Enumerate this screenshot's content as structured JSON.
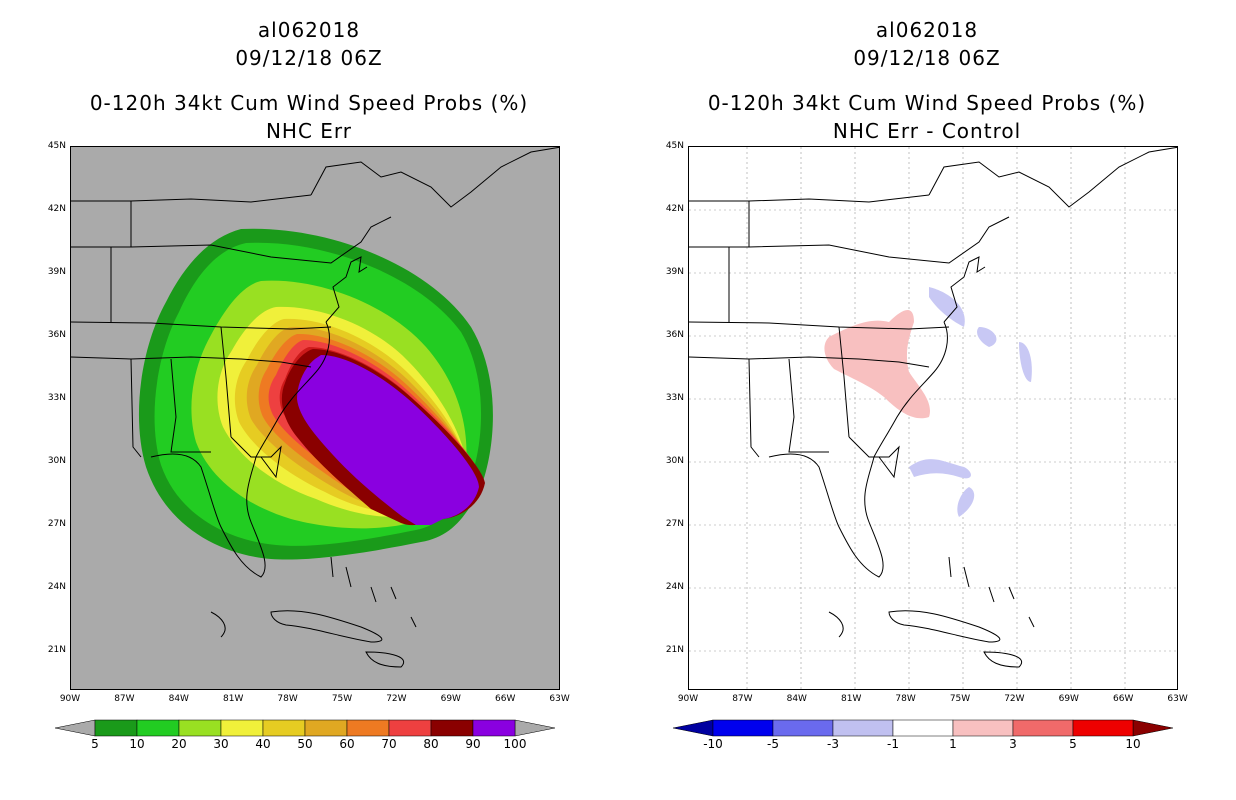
{
  "panels": [
    {
      "storm_id": "al062018",
      "datetime": "09/12/18 06Z",
      "title": "0-120h 34kt Cum Wind Speed Probs (%)",
      "subtitle": "NHC Err",
      "colorbar": {
        "labels": [
          "5",
          "10",
          "20",
          "30",
          "40",
          "50",
          "60",
          "70",
          "80",
          "90",
          "100"
        ],
        "colors": [
          "#1a9a1a",
          "#22cc22",
          "#99e022",
          "#f0f03a",
          "#e6cc22",
          "#e0a822",
          "#ee7a22",
          "#ee4040",
          "#8a0000",
          "#8a00e0"
        ]
      }
    },
    {
      "storm_id": "al062018",
      "datetime": "09/12/18 06Z",
      "title": "0-120h 34kt Cum Wind Speed Probs (%)",
      "subtitle": "NHC Err - Control",
      "colorbar": {
        "labels": [
          "-10",
          "-5",
          "-3",
          "-1",
          "1",
          "3",
          "5",
          "10"
        ],
        "colors": [
          "#0000a0",
          "#0000ee",
          "#6a6aee",
          "#c0c0f0",
          "#ffffff",
          "#f8c0c0",
          "#f06a6a",
          "#ee0000",
          "#8a0000"
        ]
      }
    }
  ],
  "lat_labels": [
    "45N",
    "42N",
    "39N",
    "36N",
    "33N",
    "30N",
    "27N",
    "24N",
    "21N"
  ],
  "lon_labels": [
    "90W",
    "87W",
    "84W",
    "81W",
    "78W",
    "75W",
    "72W",
    "69W",
    "66W",
    "63W"
  ]
}
